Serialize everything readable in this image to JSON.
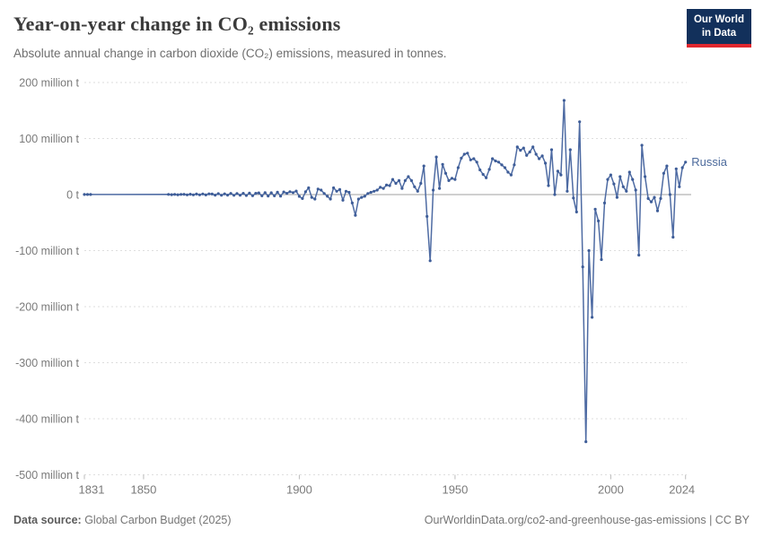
{
  "header": {
    "title": "Year-on-year change in CO₂ emissions",
    "subtitle": "Absolute annual change in carbon dioxide (CO₂) emissions, measured in tonnes.",
    "logo": {
      "line1": "Our World",
      "line2": "in Data"
    }
  },
  "footer": {
    "source_label": "Data source:",
    "source_value": " Global Carbon Budget (2025)",
    "right_text": "OurWorldinData.org/co2-and-greenhouse-gas-emissions | CC BY"
  },
  "colors": {
    "line": "#4e6ba3",
    "marker": "#3e5d98",
    "series_label": "#4c6a9c",
    "grid": "#dedede",
    "zero_line": "#a2a2a2",
    "axis_text": "#7a7a7a",
    "logo_bg": "#12305b",
    "logo_red": "#e0262e"
  },
  "chart_data": {
    "type": "line",
    "title": "Year-on-year change in CO₂ emissions",
    "unit": "million tonnes",
    "xlim": [
      1831,
      2024
    ],
    "ylim": [
      -500,
      200
    ],
    "grid": "dashed-horizontal",
    "legend_position": "end-of-line-label",
    "yticks": [
      {
        "v": 200,
        "label": "200 million t"
      },
      {
        "v": 100,
        "label": "100 million t"
      },
      {
        "v": 0,
        "label": "0 t"
      },
      {
        "v": -100,
        "label": "-100 million t"
      },
      {
        "v": -200,
        "label": "-200 million t"
      },
      {
        "v": -300,
        "label": "-300 million t"
      },
      {
        "v": -400,
        "label": "-400 million t"
      },
      {
        "v": -500,
        "label": "-500 million t"
      }
    ],
    "xticks": [
      1831,
      1850,
      1900,
      1950,
      2000,
      2024
    ],
    "series": [
      {
        "name": "Russia",
        "points": [
          [
            1831,
            0.2
          ],
          [
            1832,
            0.2
          ],
          [
            1833,
            0.1
          ],
          [
            1858,
            0.3
          ],
          [
            1859,
            -0.2
          ],
          [
            1860,
            0.4
          ],
          [
            1861,
            -0.3
          ],
          [
            1862,
            0.3
          ],
          [
            1863,
            0.5
          ],
          [
            1864,
            -0.4
          ],
          [
            1865,
            0.7
          ],
          [
            1866,
            -0.4
          ],
          [
            1867,
            0.9
          ],
          [
            1868,
            -0.5
          ],
          [
            1869,
            1.1
          ],
          [
            1870,
            -0.6
          ],
          [
            1871,
            1.3
          ],
          [
            1872,
            0.9
          ],
          [
            1873,
            -1
          ],
          [
            1874,
            1.6
          ],
          [
            1875,
            -1.1
          ],
          [
            1876,
            1.3
          ],
          [
            1877,
            -0.9
          ],
          [
            1878,
            2.1
          ],
          [
            1879,
            -1.3
          ],
          [
            1880,
            1.9
          ],
          [
            1881,
            -1.1
          ],
          [
            1882,
            2.3
          ],
          [
            1883,
            -1.6
          ],
          [
            1884,
            2.6
          ],
          [
            1885,
            -2.1
          ],
          [
            1886,
            2.2
          ],
          [
            1887,
            3.1
          ],
          [
            1888,
            -2.2
          ],
          [
            1889,
            3.6
          ],
          [
            1890,
            -2.6
          ],
          [
            1891,
            3.2
          ],
          [
            1892,
            -2.2
          ],
          [
            1893,
            4.2
          ],
          [
            1894,
            -2.7
          ],
          [
            1895,
            4.6
          ],
          [
            1896,
            2.2
          ],
          [
            1897,
            5.2
          ],
          [
            1898,
            3.6
          ],
          [
            1899,
            6.2
          ],
          [
            1900,
            -3.2
          ],
          [
            1901,
            -7
          ],
          [
            1902,
            5
          ],
          [
            1903,
            12
          ],
          [
            1904,
            -5
          ],
          [
            1905,
            -8
          ],
          [
            1906,
            10
          ],
          [
            1907,
            8
          ],
          [
            1908,
            2
          ],
          [
            1909,
            -3
          ],
          [
            1910,
            -8
          ],
          [
            1911,
            12
          ],
          [
            1912,
            6
          ],
          [
            1913,
            9
          ],
          [
            1914,
            -10
          ],
          [
            1915,
            6
          ],
          [
            1916,
            4
          ],
          [
            1917,
            -15
          ],
          [
            1918,
            -37
          ],
          [
            1919,
            -8
          ],
          [
            1920,
            -5
          ],
          [
            1921,
            -3
          ],
          [
            1922,
            2
          ],
          [
            1923,
            4
          ],
          [
            1924,
            6
          ],
          [
            1925,
            8
          ],
          [
            1926,
            13
          ],
          [
            1927,
            11
          ],
          [
            1928,
            17
          ],
          [
            1929,
            16
          ],
          [
            1930,
            27
          ],
          [
            1931,
            20
          ],
          [
            1932,
            25
          ],
          [
            1933,
            11
          ],
          [
            1934,
            25
          ],
          [
            1935,
            32
          ],
          [
            1936,
            25
          ],
          [
            1937,
            14
          ],
          [
            1938,
            6
          ],
          [
            1939,
            20
          ],
          [
            1940,
            51
          ],
          [
            1941,
            -39
          ],
          [
            1942,
            -118
          ],
          [
            1943,
            8
          ],
          [
            1944,
            67
          ],
          [
            1945,
            11
          ],
          [
            1946,
            54
          ],
          [
            1947,
            38
          ],
          [
            1948,
            25
          ],
          [
            1949,
            29
          ],
          [
            1950,
            27
          ],
          [
            1951,
            48
          ],
          [
            1952,
            65
          ],
          [
            1953,
            72
          ],
          [
            1954,
            74
          ],
          [
            1955,
            62
          ],
          [
            1956,
            64
          ],
          [
            1957,
            58
          ],
          [
            1958,
            44
          ],
          [
            1959,
            36
          ],
          [
            1960,
            30
          ],
          [
            1961,
            45
          ],
          [
            1962,
            64
          ],
          [
            1963,
            60
          ],
          [
            1964,
            58
          ],
          [
            1965,
            53
          ],
          [
            1966,
            48
          ],
          [
            1967,
            40
          ],
          [
            1968,
            35
          ],
          [
            1969,
            53
          ],
          [
            1970,
            85
          ],
          [
            1971,
            79
          ],
          [
            1972,
            83
          ],
          [
            1973,
            70
          ],
          [
            1974,
            76
          ],
          [
            1975,
            85
          ],
          [
            1976,
            72
          ],
          [
            1977,
            64
          ],
          [
            1978,
            69
          ],
          [
            1979,
            56
          ],
          [
            1980,
            16
          ],
          [
            1981,
            80
          ],
          [
            1982,
            0
          ],
          [
            1983,
            42
          ],
          [
            1984,
            35
          ],
          [
            1985,
            168
          ],
          [
            1986,
            6
          ],
          [
            1987,
            80
          ],
          [
            1988,
            -6
          ],
          [
            1989,
            -31
          ],
          [
            1990,
            130
          ],
          [
            1991,
            -129
          ],
          [
            1992,
            -441
          ],
          [
            1993,
            -100
          ],
          [
            1994,
            -219
          ],
          [
            1995,
            -26
          ],
          [
            1996,
            -47
          ],
          [
            1997,
            -116
          ],
          [
            1998,
            -15
          ],
          [
            1999,
            27
          ],
          [
            2000,
            35
          ],
          [
            2001,
            19
          ],
          [
            2002,
            -5
          ],
          [
            2003,
            32
          ],
          [
            2004,
            14
          ],
          [
            2005,
            6
          ],
          [
            2006,
            40
          ],
          [
            2007,
            27
          ],
          [
            2008,
            8
          ],
          [
            2009,
            -108
          ],
          [
            2010,
            88
          ],
          [
            2011,
            32
          ],
          [
            2012,
            -7
          ],
          [
            2013,
            -13
          ],
          [
            2014,
            -5
          ],
          [
            2015,
            -29
          ],
          [
            2016,
            -7
          ],
          [
            2017,
            38
          ],
          [
            2018,
            51
          ],
          [
            2019,
            0
          ],
          [
            2020,
            -76
          ],
          [
            2021,
            46
          ],
          [
            2022,
            14
          ],
          [
            2023,
            48
          ],
          [
            2024,
            58
          ]
        ]
      }
    ]
  }
}
